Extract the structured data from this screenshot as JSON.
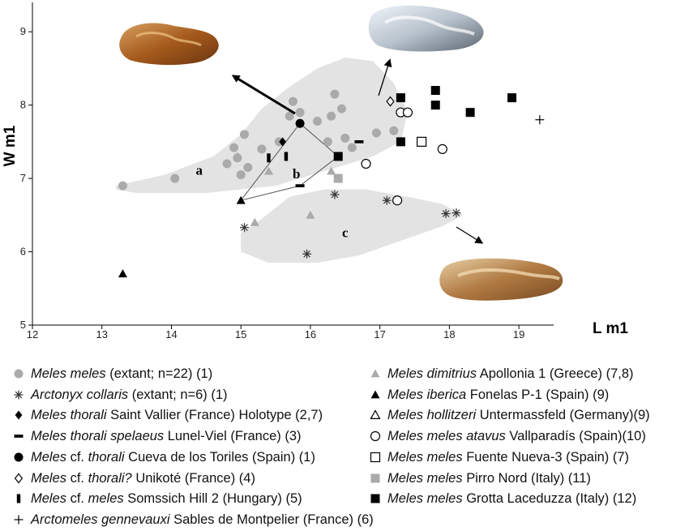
{
  "chart_data": {
    "type": "scatter",
    "xlabel": "L m1",
    "ylabel": "W m1",
    "xlim": [
      12,
      19.5
    ],
    "ylim": [
      5,
      9.4
    ],
    "xticks": [
      "12",
      "13",
      "14",
      "15",
      "16",
      "17",
      "18",
      "19"
    ],
    "yticks": [
      "5",
      "6",
      "7",
      "8",
      "9"
    ],
    "regions": [
      {
        "label": "a",
        "label_pos": [
          14.4,
          7.05
        ],
        "outline": [
          [
            13.2,
            6.9
          ],
          [
            13.9,
            7.05
          ],
          [
            14.6,
            7.3
          ],
          [
            15.0,
            7.6
          ],
          [
            15.3,
            7.95
          ],
          [
            15.7,
            8.25
          ],
          [
            16.1,
            8.5
          ],
          [
            16.5,
            8.65
          ],
          [
            16.9,
            8.6
          ],
          [
            17.2,
            8.3
          ],
          [
            17.4,
            7.9
          ],
          [
            17.3,
            7.5
          ],
          [
            16.9,
            7.3
          ],
          [
            16.2,
            7.1
          ],
          [
            15.5,
            6.9
          ],
          [
            14.5,
            6.8
          ],
          [
            13.5,
            6.8
          ],
          [
            13.2,
            6.85
          ]
        ]
      },
      {
        "label": "b",
        "label_pos": [
          15.8,
          7.0
        ]
      },
      {
        "label": "c",
        "label_pos": [
          16.5,
          6.2
        ],
        "outline": [
          [
            15.3,
            6.45
          ],
          [
            15.7,
            6.75
          ],
          [
            16.2,
            6.85
          ],
          [
            16.8,
            6.85
          ],
          [
            17.4,
            6.75
          ],
          [
            17.9,
            6.65
          ],
          [
            18.2,
            6.5
          ],
          [
            17.9,
            6.35
          ],
          [
            17.3,
            6.15
          ],
          [
            16.7,
            5.95
          ],
          [
            16.1,
            5.85
          ],
          [
            15.4,
            5.85
          ],
          [
            15.0,
            6.0
          ],
          [
            15.0,
            6.25
          ],
          [
            15.3,
            6.45
          ]
        ]
      }
    ],
    "polygon_b": [
      [
        16.4,
        7.3
      ],
      [
        15.85,
        7.75
      ],
      [
        15.0,
        6.7
      ],
      [
        15.85,
        6.9
      ],
      [
        16.4,
        7.3
      ]
    ],
    "series": [
      {
        "name": "Meles meles (extant; n=22) (1)",
        "marker": "circle-gray",
        "points": [
          [
            13.3,
            6.9
          ],
          [
            14.05,
            7.0
          ],
          [
            14.8,
            7.2
          ],
          [
            14.95,
            7.28
          ],
          [
            14.9,
            7.42
          ],
          [
            15.05,
            7.6
          ],
          [
            15.0,
            7.05
          ],
          [
            15.1,
            7.15
          ],
          [
            15.3,
            7.4
          ],
          [
            15.55,
            7.5
          ],
          [
            15.7,
            7.85
          ],
          [
            15.75,
            8.05
          ],
          [
            15.85,
            7.9
          ],
          [
            16.1,
            7.78
          ],
          [
            16.25,
            7.5
          ],
          [
            16.3,
            7.85
          ],
          [
            16.35,
            8.15
          ],
          [
            16.45,
            7.95
          ],
          [
            16.5,
            7.55
          ],
          [
            16.6,
            7.42
          ],
          [
            16.95,
            7.62
          ],
          [
            17.2,
            7.65
          ]
        ]
      },
      {
        "name": "Arctonyx collaris (extant; n=6) (1)",
        "marker": "asterisk",
        "points": [
          [
            15.05,
            6.33
          ],
          [
            15.95,
            5.97
          ],
          [
            16.35,
            6.78
          ],
          [
            17.1,
            6.7
          ],
          [
            17.95,
            6.52
          ],
          [
            18.1,
            6.53
          ]
        ]
      },
      {
        "name": "Meles thorali Saint Vallier (France) Holotype (2,7)",
        "marker": "diamond-black",
        "points": [
          [
            15.6,
            7.5
          ]
        ]
      },
      {
        "name": "Meles thorali spelaeus Lunel-Viel (France) (3)",
        "marker": "hbar",
        "points": [
          [
            15.85,
            6.9
          ],
          [
            16.7,
            7.5
          ]
        ]
      },
      {
        "name": "Meles cf. thorali Cueva de los Toriles (Spain) (1)",
        "marker": "circle-black",
        "points": [
          [
            15.85,
            7.75
          ]
        ]
      },
      {
        "name": "Meles cf. thorali? Unikoté (France) (4)",
        "marker": "diamond-open",
        "points": [
          [
            17.15,
            8.05
          ]
        ]
      },
      {
        "name": "Meles cf. meles Somssich Hill 2 (Hungary) (5)",
        "marker": "vbar",
        "points": [
          [
            15.4,
            7.28
          ],
          [
            15.65,
            7.3
          ]
        ]
      },
      {
        "name": "Arctomeles gennevauxi Sables de Montpelier (France) (6)",
        "marker": "plus",
        "points": [
          [
            19.3,
            7.8
          ]
        ]
      },
      {
        "name": "Meles dimitrius Apollonia 1 (Greece) (7,8)",
        "marker": "triangle-gray",
        "points": [
          [
            14.95,
            7.3
          ],
          [
            15.4,
            7.1
          ],
          [
            15.2,
            6.4
          ],
          [
            16.0,
            6.5
          ],
          [
            16.3,
            7.1
          ]
        ]
      },
      {
        "name": "Meles iberica Fonelas P-1 (Spain) (9)",
        "marker": "triangle-black",
        "points": [
          [
            13.3,
            5.7
          ],
          [
            15.0,
            6.7
          ]
        ]
      },
      {
        "name": "Meles hollitzeri Untermassfeld (Germany)(9)",
        "marker": "triangle-open",
        "points": []
      },
      {
        "name": "Meles meles atavus Vallparadís (Spain)(10)",
        "marker": "circle-open",
        "points": [
          [
            16.8,
            7.2
          ],
          [
            17.25,
            6.7
          ],
          [
            17.3,
            7.9
          ],
          [
            17.4,
            7.9
          ],
          [
            17.9,
            7.4
          ]
        ]
      },
      {
        "name": "Meles meles Fuente Nueva-3 (Spain) (7)",
        "marker": "square-open",
        "points": [
          [
            17.6,
            7.5
          ]
        ]
      },
      {
        "name": "Meles meles Pirro Nord (Italy) (11)",
        "marker": "square-gray",
        "points": [
          [
            16.4,
            7.0
          ]
        ]
      },
      {
        "name": "Meles meles Grotta Laceduzza (Italy) (12)",
        "marker": "square-black",
        "points": [
          [
            16.4,
            7.3
          ],
          [
            17.3,
            8.1
          ],
          [
            17.3,
            7.5
          ],
          [
            17.8,
            8.2
          ],
          [
            17.8,
            8.0
          ],
          [
            18.3,
            7.9
          ],
          [
            18.9,
            8.1
          ]
        ]
      }
    ],
    "legend": {
      "left": [
        {
          "marker": "circle-gray",
          "italic": "Meles meles",
          "rest": " (extant; n=22) (1)"
        },
        {
          "marker": "asterisk",
          "italic": "Arctonyx collaris",
          "rest": " (extant; n=6) (1)"
        },
        {
          "marker": "diamond-black",
          "italic": "Meles thorali",
          "rest": " Saint Vallier (France) Holotype (2,7)"
        },
        {
          "marker": "hbar",
          "italic": "Meles thorali spelaeus",
          "rest": " Lunel-Viel (France) (3)"
        },
        {
          "marker": "circle-black",
          "italic": "Meles",
          "rest2_plain": " cf. ",
          "italic2": "thorali",
          "rest": " Cueva de los Toriles (Spain) (1)"
        },
        {
          "marker": "diamond-open",
          "italic": "Meles",
          "rest2_plain": " cf. ",
          "italic2": "thorali?",
          "rest": " Unikoté (France) (4)"
        },
        {
          "marker": "vbar",
          "italic": "Meles",
          "rest2_plain": " cf. ",
          "italic2": "meles",
          "rest": " Somssich Hill 2 (Hungary) (5)"
        },
        {
          "marker": "plus",
          "italic": "Arctomeles gennevauxi",
          "rest": " Sables de Montpelier (France) (6)"
        }
      ],
      "right": [
        {
          "marker": "triangle-gray",
          "italic": "Meles dimitrius",
          "rest": " Apollonia 1 (Greece) (7,8)"
        },
        {
          "marker": "triangle-black",
          "italic": "Meles iberica",
          "rest": " Fonelas P-1 (Spain) (9)"
        },
        {
          "marker": "triangle-open",
          "italic": "Meles hollitzeri",
          "rest": " Untermassfeld (Germany)(9)"
        },
        {
          "marker": "circle-open",
          "italic": "Meles meles atavus",
          "rest": " Vallparadís (Spain)(10)"
        },
        {
          "marker": "square-open",
          "italic": "Meles meles",
          "rest": " Fuente Nueva-3 (Spain) (7)"
        },
        {
          "marker": "square-gray",
          "italic": "Meles meles",
          "rest": " Pirro Nord (Italy) (11)"
        },
        {
          "marker": "square-black",
          "italic": "Meles meles",
          "rest": " Grotta Laceduzza (Italy) (12)"
        }
      ]
    },
    "colors": {
      "gray_marker": "#aaaaaa",
      "region_fill": "#e3e3e3",
      "black": "#000000"
    }
  }
}
